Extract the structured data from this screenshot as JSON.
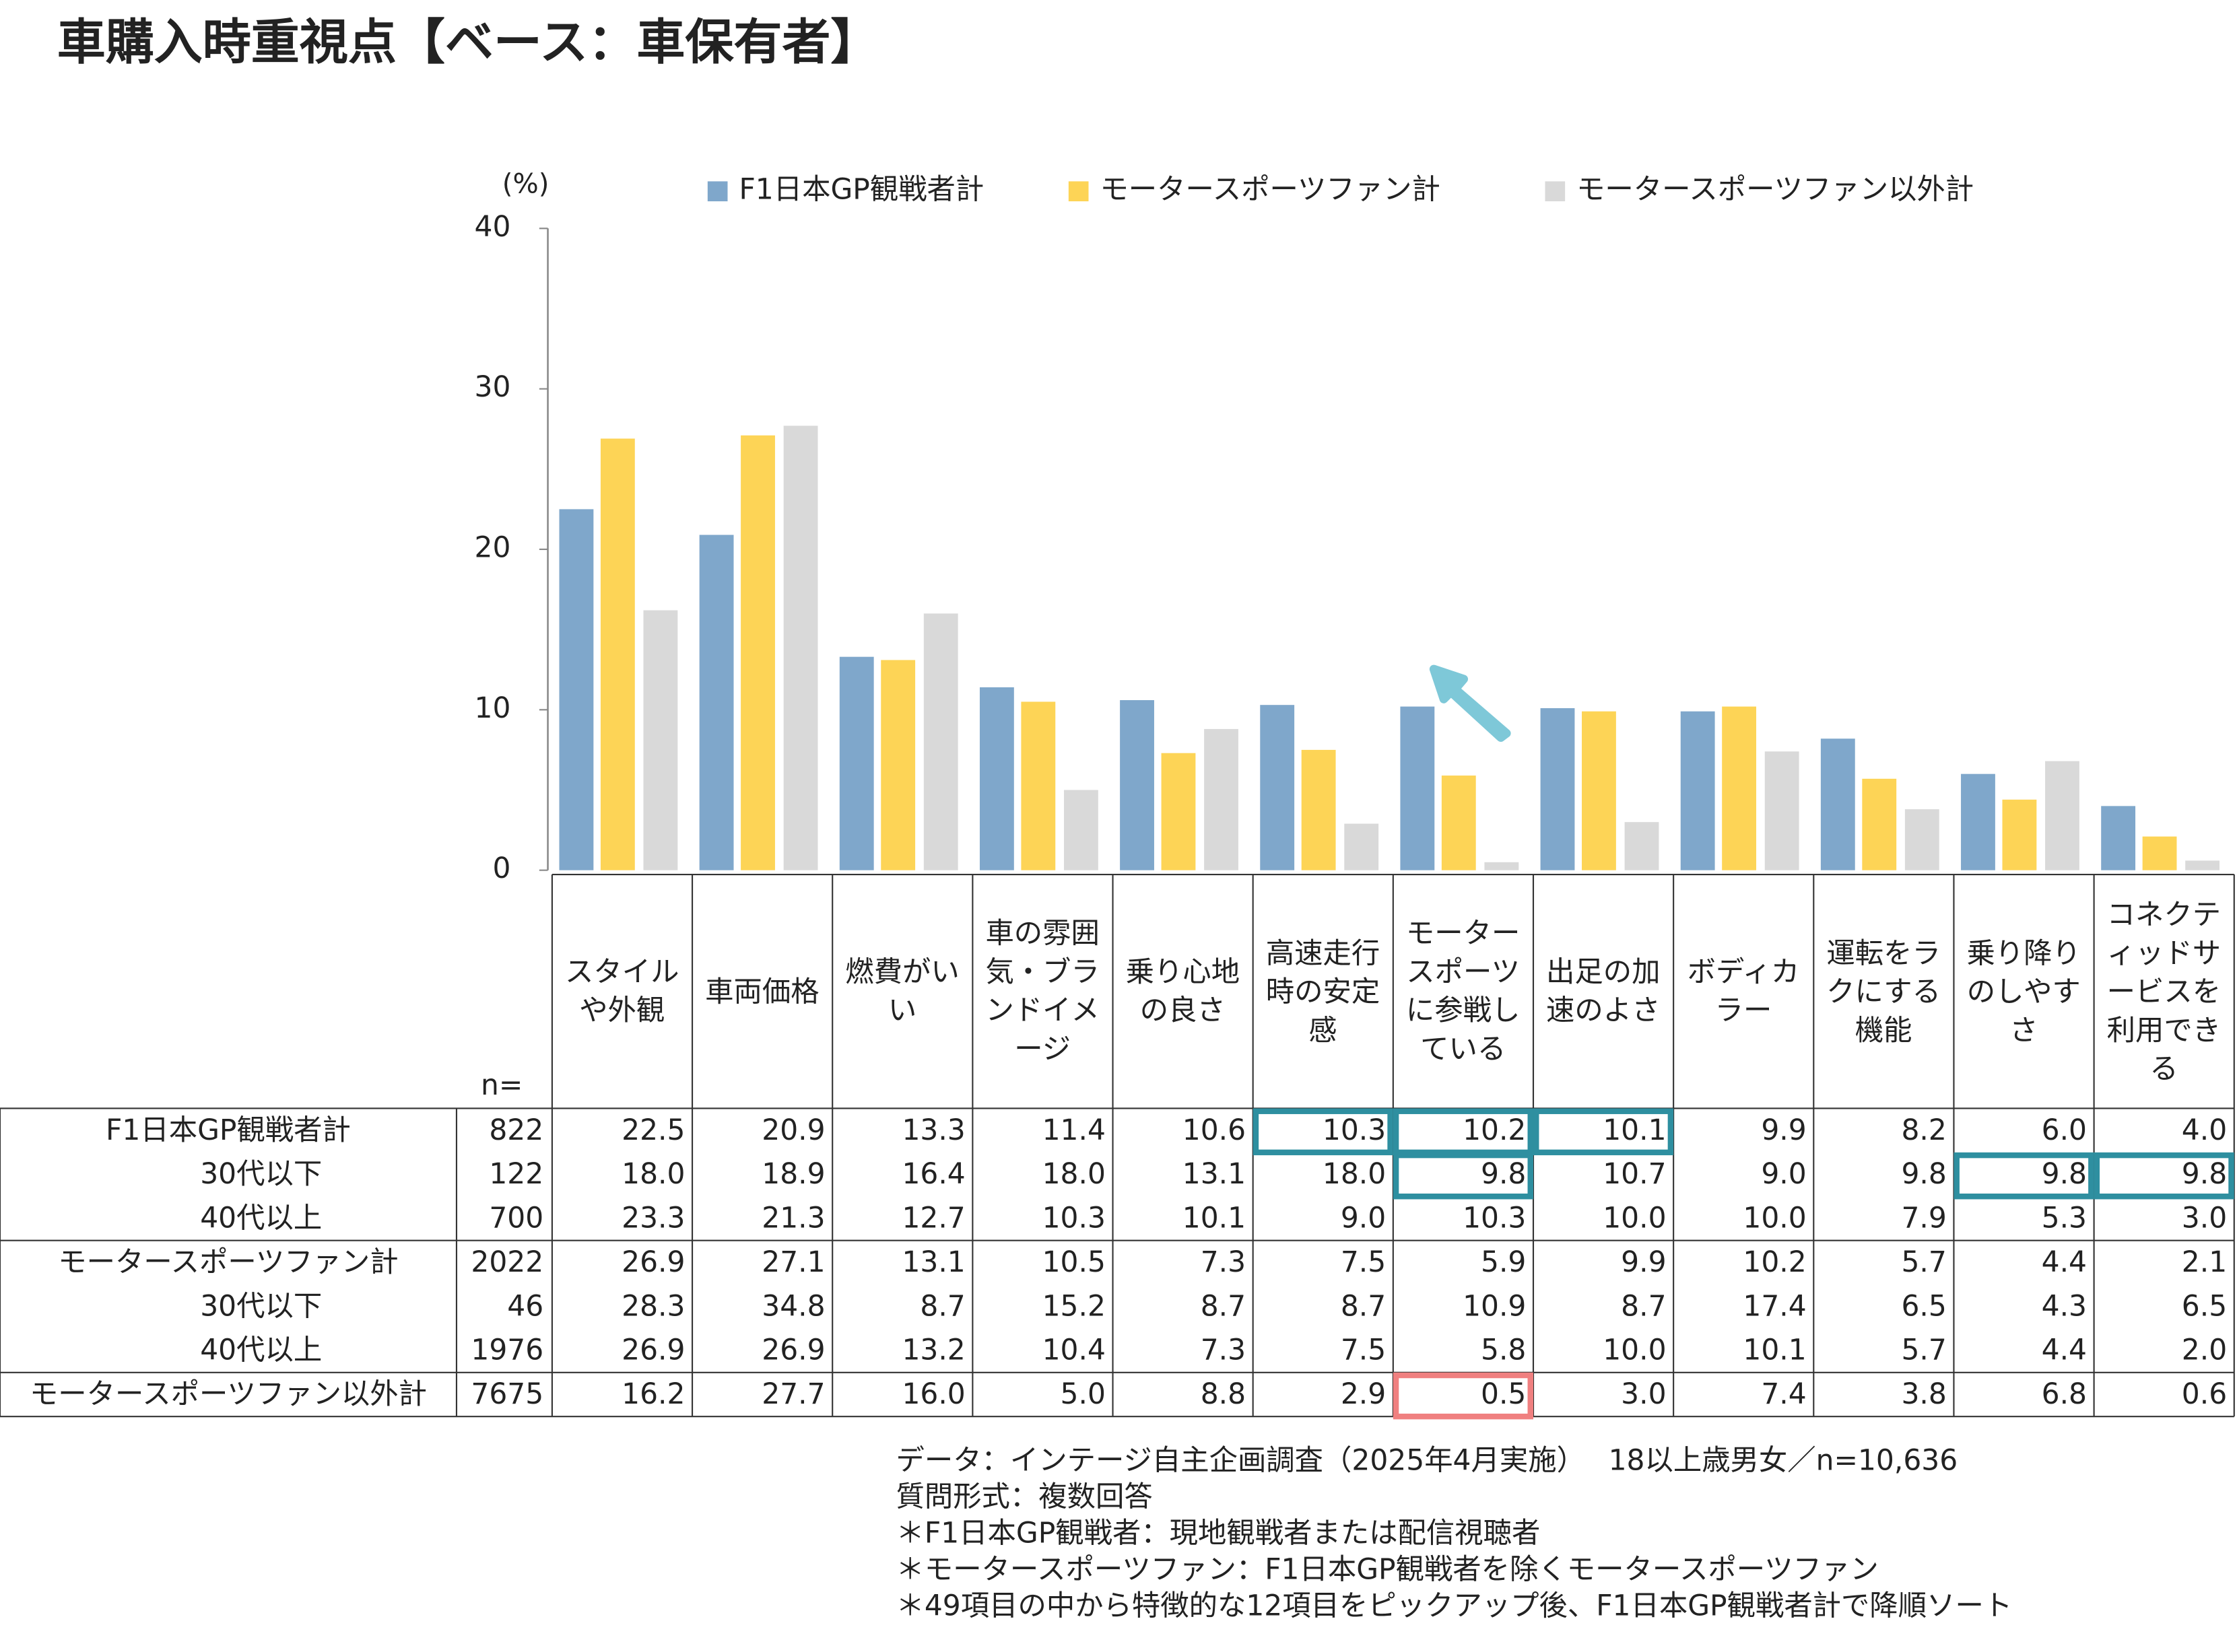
{
  "chart_data": {
    "type": "bar",
    "title": "車購入時重視点【ベース：車保有者】",
    "y_unit": "(%)",
    "ylim": [
      0,
      40
    ],
    "yticks": [
      0,
      10,
      20,
      30,
      40
    ],
    "n_label": "n=",
    "categories": [
      "スタイルや外観",
      "車両価格",
      "燃費がいい",
      "車の雰囲気・ブランドイメージ",
      "乗り心地の良さ",
      "高速走行時の安定感",
      "モータースポーツに参戦している",
      "出足の加速のよさ",
      "ボディカラー",
      "運転をラクにする機能",
      "乗り降りのしやすさ",
      "コネクティッドサービスを利用できる"
    ],
    "series": [
      {
        "name": "F1日本GP観戦者計",
        "color": "#7fa7cb",
        "n": 822,
        "values": [
          22.5,
          20.9,
          13.3,
          11.4,
          10.6,
          10.3,
          10.2,
          10.1,
          9.9,
          8.2,
          6.0,
          4.0
        ],
        "value_labels": [
          "22.5",
          "20.9",
          "13.3",
          "11.4",
          "10.6",
          "10.3",
          "10.2",
          "10.1",
          "9.9",
          "8.2",
          "6.0",
          "4.0"
        ],
        "subgroups": [
          {
            "name": "30代以下",
            "n": 122,
            "values": [
              "18.0",
              "18.9",
              "16.4",
              "18.0",
              "13.1",
              "18.0",
              "9.8",
              "10.7",
              "9.0",
              "9.8",
              "9.8",
              "9.8"
            ]
          },
          {
            "name": "40代以上",
            "n": 700,
            "values": [
              "23.3",
              "21.3",
              "12.7",
              "10.3",
              "10.1",
              "9.0",
              "10.3",
              "10.0",
              "10.0",
              "7.9",
              "5.3",
              "3.0"
            ]
          }
        ]
      },
      {
        "name": "モータースポーツファン計",
        "color": "#fdd456",
        "n": 2022,
        "values": [
          26.9,
          27.1,
          13.1,
          10.5,
          7.3,
          7.5,
          5.9,
          9.9,
          10.2,
          5.7,
          4.4,
          2.1
        ],
        "value_labels": [
          "26.9",
          "27.1",
          "13.1",
          "10.5",
          "7.3",
          "7.5",
          "5.9",
          "9.9",
          "10.2",
          "5.7",
          "4.4",
          "2.1"
        ],
        "subgroups": [
          {
            "name": "30代以下",
            "n": 46,
            "values": [
              "28.3",
              "34.8",
              "8.7",
              "15.2",
              "8.7",
              "8.7",
              "10.9",
              "8.7",
              "17.4",
              "6.5",
              "4.3",
              "6.5"
            ]
          },
          {
            "name": "40代以上",
            "n": 1976,
            "values": [
              "26.9",
              "26.9",
              "13.2",
              "10.4",
              "7.3",
              "7.5",
              "5.8",
              "10.0",
              "10.1",
              "5.7",
              "4.4",
              "2.0"
            ]
          }
        ]
      },
      {
        "name": "モータースポーツファン以外計",
        "color": "#d9d9d9",
        "n": 7675,
        "values": [
          16.2,
          27.7,
          16.0,
          5.0,
          8.8,
          2.9,
          0.5,
          3.0,
          7.4,
          3.8,
          6.8,
          0.6
        ],
        "value_labels": [
          "16.2",
          "27.7",
          "16.0",
          "5.0",
          "8.8",
          "2.9",
          "0.5",
          "3.0",
          "7.4",
          "3.8",
          "6.8",
          "0.6"
        ],
        "subgroups": []
      }
    ],
    "notes": [
      "データ：インテージ自主企画調査（2025年4月実施）　 18以上歳男女／n=10,636",
      "質問形式：複数回答",
      "＊F1日本GP観戦者：現地観戦者または配信視聴者",
      "＊モータースポーツファン：F1日本GP観戦者を除くモータースポーツファン",
      "＊49項目の中から特徴的な12項目をピックアップ後、F1日本GP観戦者計で降順ソート"
    ]
  }
}
